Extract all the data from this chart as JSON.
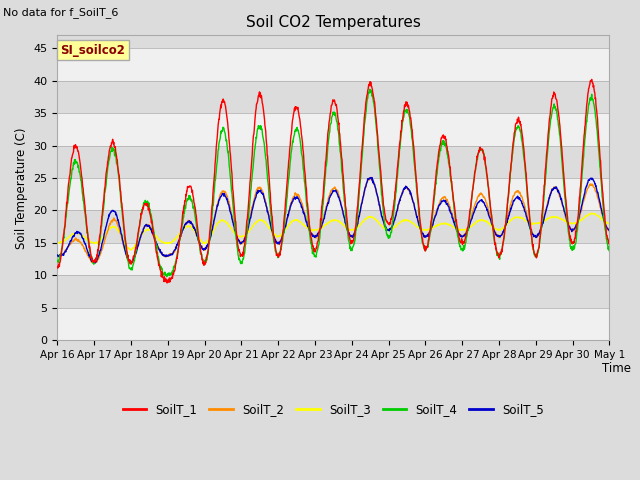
{
  "title": "Soil CO2 Temperatures",
  "no_data_text": "No data for f_SoilT_6",
  "si_label": "SI_soilco2",
  "ylabel": "Soil Temperature (C)",
  "xlabel": "Time",
  "ylim": [
    0,
    47
  ],
  "yticks": [
    0,
    5,
    10,
    15,
    20,
    25,
    30,
    35,
    40,
    45
  ],
  "xtick_labels": [
    "Apr 16",
    "Apr 17",
    "Apr 18",
    "Apr 19",
    "Apr 20",
    "Apr 21",
    "Apr 22",
    "Apr 23",
    "Apr 24",
    "Apr 25",
    "Apr 26",
    "Apr 27",
    "Apr 28",
    "Apr 29",
    "Apr 30",
    "May 1"
  ],
  "line_colors": {
    "SoilT_1": "#FF0000",
    "SoilT_2": "#FF8C00",
    "SoilT_3": "#FFFF00",
    "SoilT_4": "#00CC00",
    "SoilT_5": "#0000CC"
  },
  "legend_entries": [
    "SoilT_1",
    "SoilT_2",
    "SoilT_3",
    "SoilT_4",
    "SoilT_5"
  ],
  "bg_color": "#DCDCDC",
  "plot_bg_color": "#DCDCDC",
  "band_color_light": "#DCDCDC",
  "band_color_white": "#F0F0F0",
  "num_days": 15,
  "points_per_day": 96,
  "red_peaks": [
    30,
    30,
    31,
    9,
    36,
    38,
    38,
    34,
    40,
    39,
    34,
    29,
    30,
    38,
    38,
    42,
    42
  ],
  "red_mins": [
    11,
    12,
    12,
    9,
    12,
    13,
    13,
    14,
    15,
    18,
    14,
    15,
    13,
    13,
    15,
    15,
    16
  ],
  "green_peaks": [
    27,
    28,
    31,
    10,
    32,
    33,
    33,
    32,
    38,
    39,
    32,
    29,
    30,
    36,
    36,
    39,
    40
  ],
  "green_mins": [
    12,
    12,
    11,
    10,
    12,
    12,
    13,
    13,
    14,
    16,
    14,
    14,
    13,
    13,
    14,
    14,
    15
  ],
  "orange_peaks": [
    15,
    16,
    21,
    14,
    22,
    24,
    23,
    22,
    25,
    25,
    22,
    22,
    23,
    23,
    24,
    24,
    21
  ],
  "orange_mins": [
    13,
    12,
    12,
    13,
    14,
    15,
    15,
    16,
    16,
    17,
    16,
    16,
    16,
    16,
    17,
    17,
    18
  ],
  "yellow_peaks": [
    16,
    17,
    18,
    16,
    19,
    18,
    19,
    18,
    19,
    19,
    18,
    18,
    19,
    19,
    19,
    20,
    20
  ],
  "yellow_mins": [
    15,
    15,
    14,
    15,
    15,
    16,
    16,
    17,
    17,
    17,
    17,
    17,
    17,
    18,
    18,
    18,
    19
  ],
  "blue_peaks": [
    14,
    19,
    21,
    14,
    22,
    23,
    23,
    21,
    25,
    25,
    22,
    21,
    22,
    22,
    25,
    25,
    26
  ],
  "blue_mins": [
    13,
    12,
    12,
    13,
    14,
    15,
    15,
    16,
    16,
    17,
    16,
    16,
    16,
    16,
    17,
    17,
    18
  ]
}
